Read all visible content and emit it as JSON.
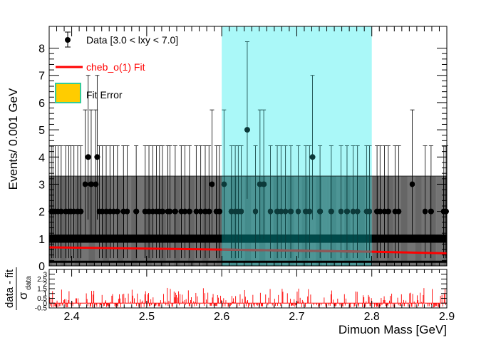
{
  "chart_data": [
    {
      "panel": "main",
      "type": "scatter",
      "xlim": [
        2.37,
        2.9
      ],
      "ylim": [
        0,
        8.8
      ],
      "ylabel": "Events/ 0.001 GeV",
      "x_ticks": [
        2.4,
        2.5,
        2.6,
        2.7,
        2.8,
        2.9
      ],
      "x_tick_labels": [
        "2.4",
        "2.5",
        "2.6",
        "2.7",
        "2.8",
        "2.9"
      ],
      "y_ticks": [
        0,
        1,
        2,
        3,
        4,
        5,
        6,
        7,
        8
      ],
      "y_tick_labels": [
        "0",
        "1",
        "2",
        "3",
        "4",
        "5",
        "6",
        "7",
        "8"
      ],
      "bin_width": 0.001,
      "highlight_region": {
        "x": [
          2.6,
          2.8
        ],
        "color": "#aaf8f8"
      },
      "legend": {
        "placement": "top-left",
        "entries": [
          {
            "label": "Data [3.0 < lxy < 7.0]",
            "color": "#000000",
            "kind": "marker"
          },
          {
            "label": "cheb_o(1) Fit",
            "color": "#ff0000",
            "kind": "line"
          },
          {
            "label": "Fit Error",
            "color": "#ffcc00",
            "border": "#33cc99",
            "kind": "box"
          }
        ]
      },
      "series": [
        {
          "name": "Data [3.0 < lxy < 7.0]",
          "style": "points_with_errors",
          "color": "#000000",
          "points": [
            [
              2.373,
              2
            ],
            [
              2.375,
              2
            ],
            [
              2.378,
              2
            ],
            [
              2.382,
              2
            ],
            [
              2.386,
              2
            ],
            [
              2.392,
              2
            ],
            [
              2.396,
              2
            ],
            [
              2.399,
              2
            ],
            [
              2.403,
              2
            ],
            [
              2.408,
              2
            ],
            [
              2.412,
              2
            ],
            [
              2.418,
              3
            ],
            [
              2.422,
              4
            ],
            [
              2.426,
              3
            ],
            [
              2.432,
              3
            ],
            [
              2.434,
              4
            ],
            [
              2.437,
              2
            ],
            [
              2.441,
              2
            ],
            [
              2.446,
              2
            ],
            [
              2.451,
              2
            ],
            [
              2.456,
              2
            ],
            [
              2.461,
              2
            ],
            [
              2.469,
              2
            ],
            [
              2.474,
              2
            ],
            [
              2.486,
              2
            ],
            [
              2.498,
              2
            ],
            [
              2.503,
              2
            ],
            [
              2.508,
              2
            ],
            [
              2.513,
              2
            ],
            [
              2.517,
              2
            ],
            [
              2.521,
              2
            ],
            [
              2.528,
              2
            ],
            [
              2.531,
              2
            ],
            [
              2.538,
              2
            ],
            [
              2.546,
              2
            ],
            [
              2.551,
              2
            ],
            [
              2.557,
              2
            ],
            [
              2.566,
              2
            ],
            [
              2.572,
              2
            ],
            [
              2.578,
              2
            ],
            [
              2.583,
              2
            ],
            [
              2.587,
              3
            ],
            [
              2.593,
              2
            ],
            [
              2.597,
              2
            ],
            [
              2.603,
              3
            ],
            [
              2.613,
              2
            ],
            [
              2.618,
              2
            ],
            [
              2.622,
              2
            ],
            [
              2.626,
              2
            ],
            [
              2.634,
              5
            ],
            [
              2.645,
              2
            ],
            [
              2.651,
              3
            ],
            [
              2.656,
              3
            ],
            [
              2.665,
              2
            ],
            [
              2.674,
              2
            ],
            [
              2.679,
              2
            ],
            [
              2.685,
              2
            ],
            [
              2.692,
              2
            ],
            [
              2.702,
              2
            ],
            [
              2.712,
              2
            ],
            [
              2.717,
              2
            ],
            [
              2.721,
              4
            ],
            [
              2.731,
              2
            ],
            [
              2.746,
              2
            ],
            [
              2.759,
              2
            ],
            [
              2.767,
              2
            ],
            [
              2.775,
              2
            ],
            [
              2.781,
              2
            ],
            [
              2.793,
              2
            ],
            [
              2.797,
              2
            ],
            [
              2.807,
              2
            ],
            [
              2.811,
              2
            ],
            [
              2.817,
              2
            ],
            [
              2.822,
              2
            ],
            [
              2.831,
              2
            ],
            [
              2.836,
              2
            ],
            [
              2.854,
              3
            ],
            [
              2.871,
              2
            ],
            [
              2.879,
              2
            ],
            [
              2.896,
              2
            ],
            [
              2.899,
              2
            ]
          ],
          "baseline_count": 1
        },
        {
          "name": "cheb_o(1) Fit",
          "style": "line",
          "color": "#ff0000",
          "x": [
            2.37,
            2.6,
            2.8,
            2.9
          ],
          "y": [
            0.68,
            0.6,
            0.52,
            0.46
          ]
        }
      ]
    },
    {
      "panel": "ratio",
      "type": "bar",
      "xlim": [
        2.37,
        2.9
      ],
      "ylim": [
        -0.5,
        3.5
      ],
      "xlabel": "Dimuon Mass [GeV]",
      "ylabel_top": "data - fit",
      "ylabel_bottom": "σ",
      "ylabel_sub": "data",
      "y_ticks": [
        -0.5,
        0,
        0.5,
        1,
        1.5,
        2,
        2.5,
        3
      ],
      "y_tick_labels": [
        "-0.5",
        "0",
        "0.5",
        "1",
        "1.5",
        "2",
        "2.5",
        "3"
      ],
      "color": "#ff0000",
      "seed": 7
    }
  ]
}
